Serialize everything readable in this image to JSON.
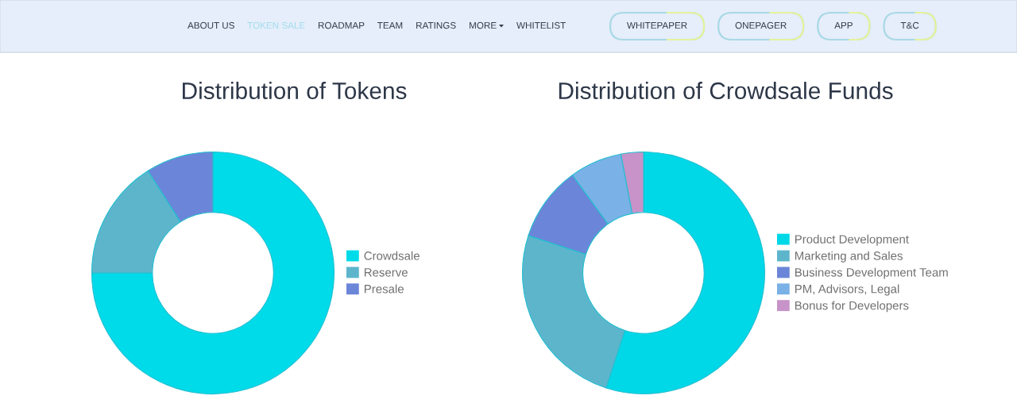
{
  "chart_data": [
    {
      "type": "other",
      "annotations": [
        "ABOUT US",
        "TOKEN SALE",
        "ROADMAP",
        "TEAM",
        "RATINGS",
        "MORE",
        "WHITELIST"
      ],
      "colors": [
        "#353d4d",
        "#a3dcef",
        "#353d4d",
        "#353d4d",
        "#353d4d",
        "#353d4d",
        "#353d4d"
      ]
    },
    {
      "type": "other",
      "annotations": [
        "WHITEPAPER",
        "ONEPAGER",
        "APP",
        "T&C"
      ]
    },
    {
      "type": "donut",
      "title": "Distribution of Tokens",
      "categories": [
        "Crowdsale",
        "Reserve",
        "Presale"
      ],
      "values": [
        75,
        16,
        9
      ],
      "colors": [
        "#00dbea",
        "#5db5cc",
        "#6b86d8"
      ],
      "legend": "right"
    },
    {
      "type": "donut",
      "title": "Distribution of Crowdsale Funds",
      "categories": [
        "Product Development",
        "Marketing and Sales",
        "Business Development Team",
        "PM, Advisors, Legal",
        "Bonus for Developers"
      ],
      "values": [
        55,
        25,
        10,
        7,
        3
      ],
      "colors": [
        "#00d8e8",
        "#5db5cc",
        "#6b86d8",
        "#7ab1e6",
        "#c793c9"
      ],
      "legend": "right"
    }
  ]
}
